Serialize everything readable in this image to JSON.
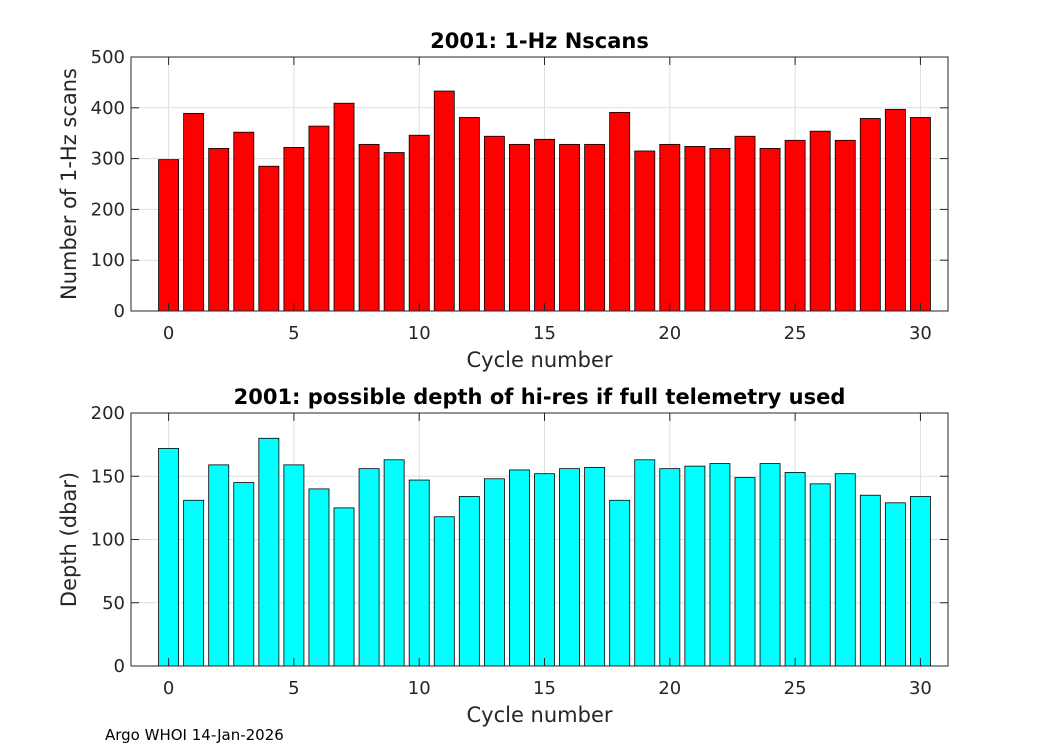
{
  "chart_data": [
    {
      "type": "bar",
      "title": "2001: 1-Hz Nscans",
      "xlabel": "Cycle number",
      "ylabel": "Number of 1-Hz scans",
      "x": [
        0,
        1,
        2,
        3,
        4,
        5,
        6,
        7,
        8,
        9,
        10,
        11,
        12,
        13,
        14,
        15,
        16,
        17,
        18,
        19,
        20,
        21,
        22,
        23,
        24,
        25,
        26,
        27,
        28,
        29,
        30
      ],
      "values": [
        298,
        389,
        320,
        352,
        285,
        322,
        364,
        409,
        328,
        312,
        346,
        433,
        381,
        344,
        328,
        338,
        328,
        328,
        391,
        315,
        328,
        324,
        320,
        344,
        320,
        336,
        354,
        336,
        379,
        397,
        381
      ],
      "xlim": [
        -1.5,
        31.1
      ],
      "ylim": [
        0,
        500
      ],
      "xticks": [
        0,
        5,
        10,
        15,
        20,
        25,
        30
      ],
      "yticks": [
        0,
        100,
        200,
        300,
        400,
        500
      ],
      "bar_color": "#ff0000",
      "grid": true
    },
    {
      "type": "bar",
      "title": "2001: possible depth of hi-res if full telemetry used",
      "xlabel": "Cycle number",
      "ylabel": "Depth (dbar)",
      "x": [
        0,
        1,
        2,
        3,
        4,
        5,
        6,
        7,
        8,
        9,
        10,
        11,
        12,
        13,
        14,
        15,
        16,
        17,
        18,
        19,
        20,
        21,
        22,
        23,
        24,
        25,
        26,
        27,
        28,
        29,
        30
      ],
      "values": [
        172,
        131,
        159,
        145,
        180,
        159,
        140,
        125,
        156,
        163,
        147,
        118,
        134,
        148,
        155,
        152,
        156,
        157,
        131,
        163,
        156,
        158,
        160,
        149,
        160,
        153,
        144,
        152,
        135,
        129,
        134
      ],
      "xlim": [
        -1.5,
        31.1
      ],
      "ylim": [
        0,
        200
      ],
      "xticks": [
        0,
        5,
        10,
        15,
        20,
        25,
        30
      ],
      "yticks": [
        0,
        50,
        100,
        150,
        200
      ],
      "bar_color": "#00ffff",
      "grid": true
    }
  ],
  "footer": "Argo WHOI 14-Jan-2026"
}
